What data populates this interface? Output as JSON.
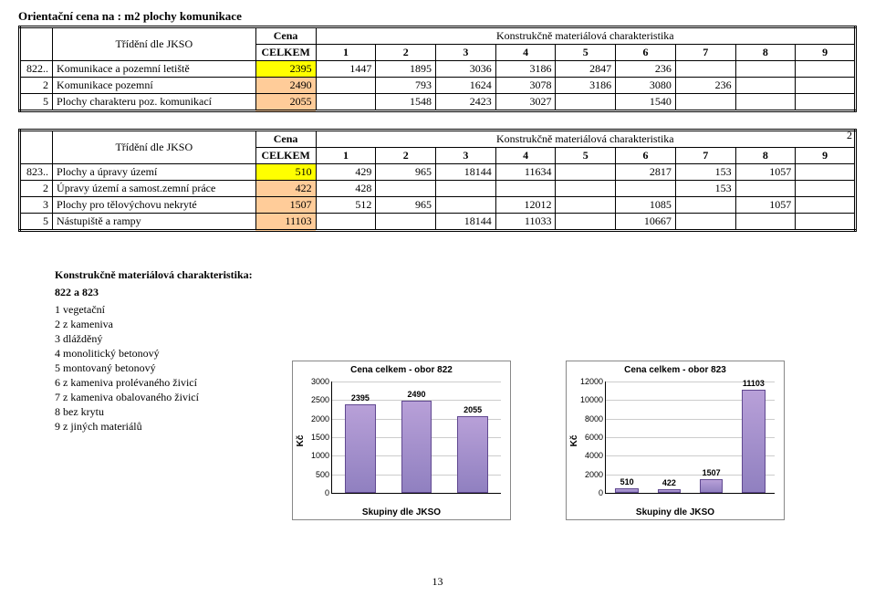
{
  "page_title_prefix": "Orientační cena na : ",
  "page_title_unit": "m2 plochy komunikace",
  "tridentni_label": "Třídění dle JKSO",
  "cena_label": "Cena",
  "kmc_label": "Konstrukčně materiálová charakteristika",
  "celkem_label": "CELKEM",
  "col_nums": [
    "1",
    "2",
    "3",
    "4",
    "5",
    "6",
    "7",
    "8",
    "9"
  ],
  "table1": {
    "rows": [
      {
        "num": "822..",
        "name": "Komunikace a pozemní letiště",
        "hl": "yellow",
        "vals": [
          "2395",
          "1447",
          "1895",
          "3036",
          "3186",
          "2847",
          "236",
          "",
          ""
        ]
      },
      {
        "num": "2",
        "name": "Komunikace pozemní",
        "hl": "peach",
        "vals": [
          "2490",
          "",
          "793",
          "1624",
          "3078",
          "3186",
          "3080",
          "236",
          ""
        ]
      },
      {
        "num": "5",
        "name": "Plochy charakteru poz. komunikací",
        "hl": "peach",
        "vals": [
          "2055",
          "",
          "1548",
          "2423",
          "3027",
          "",
          "1540",
          "",
          ""
        ]
      }
    ]
  },
  "page_indicator": "2",
  "table2": {
    "rows": [
      {
        "num": "823..",
        "name": "Plochy a úpravy území",
        "hl": "yellow",
        "vals": [
          "510",
          "429",
          "965",
          "18144",
          "11634",
          "",
          "2817",
          "153",
          "1057"
        ]
      },
      {
        "num": "2",
        "name": "Úpravy území a samost.zemní práce",
        "hl": "peach",
        "vals": [
          "422",
          "428",
          "",
          "",
          "",
          "",
          "",
          "153",
          ""
        ]
      },
      {
        "num": "3",
        "name": "Plochy pro tělovýchovu nekryté",
        "hl": "peach",
        "vals": [
          "1507",
          "512",
          "965",
          "",
          "12012",
          "",
          "1085",
          "",
          "1057"
        ]
      },
      {
        "num": "5",
        "name": "Nástupiště a rampy",
        "hl": "peach",
        "vals": [
          "11103",
          "",
          "",
          "18144",
          "11033",
          "",
          "10667",
          "",
          ""
        ]
      }
    ]
  },
  "legend": {
    "title": "Konstrukčně materiálová charakteristika:",
    "group": "822 a 823",
    "items": [
      "1 vegetační",
      "2 z kameniva",
      "3 dlážděný",
      "4 monolitický betonový",
      "5 montovaný betonový",
      "6 z kameniva prolévaného živicí",
      "7 z kameniva obalovaného živicí",
      "8 bez krytu",
      "9 z jiných materiálů"
    ]
  },
  "chart1": {
    "title": "Cena celkem - obor 822",
    "ylabel": "Kč",
    "xlabel": "Skupiny dle JKSO",
    "ylim": [
      0,
      3000
    ],
    "ytick_step": 500,
    "values": [
      2395,
      2490,
      2055
    ],
    "bar_color_top": "#b8a0d8",
    "bar_color_bottom": "#9080c0",
    "bar_border": "#604890",
    "grid_color": "#cccccc"
  },
  "chart2": {
    "title": "Cena celkem - obor 823",
    "ylabel": "Kč",
    "xlabel": "Skupiny dle JKSO",
    "ylim": [
      0,
      12000
    ],
    "ytick_step": 2000,
    "values": [
      510,
      422,
      1507,
      11103
    ],
    "bar_color_top": "#b8a0d8",
    "bar_color_bottom": "#9080c0",
    "bar_border": "#604890",
    "grid_color": "#cccccc"
  },
  "footer_page": "13"
}
